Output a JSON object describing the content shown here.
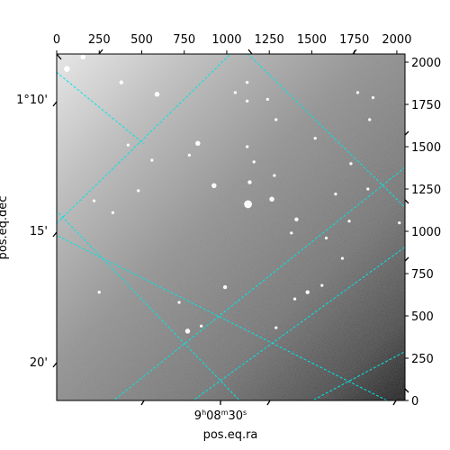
{
  "chart_data": {
    "type": "image",
    "title": "",
    "x_pixel_axis": {
      "range": [
        0,
        2048
      ],
      "ticks": [
        0,
        250,
        500,
        750,
        1000,
        1250,
        1500,
        1750,
        2000
      ],
      "tick_labels": [
        "0",
        "250",
        "500",
        "750",
        "1000",
        "1250",
        "1500",
        "1750",
        "2000"
      ]
    },
    "y_pixel_axis": {
      "range": [
        0,
        2048
      ],
      "ticks": [
        0,
        250,
        500,
        750,
        1000,
        1250,
        1500,
        1750,
        2000
      ],
      "tick_labels": [
        "0",
        "250",
        "500",
        "750",
        "1000",
        "1250",
        "1500",
        "1750",
        "2000"
      ]
    },
    "ra_axis": {
      "label": "pos.eq.ra",
      "tick_label": {
        "h": "9",
        "m": "08",
        "s": "30"
      }
    },
    "dec_axis": {
      "label": "pos.eq.dec",
      "tick_labels": [
        "1°10'",
        "15'",
        "20'"
      ]
    },
    "grid": true,
    "grid_color": "#00e5e5",
    "stars": [
      {
        "x": 60,
        "y": 1960,
        "r": 6
      },
      {
        "x": 155,
        "y": 2030,
        "r": 5
      },
      {
        "x": 380,
        "y": 1880,
        "r": 4
      },
      {
        "x": 590,
        "y": 1810,
        "r": 5
      },
      {
        "x": 830,
        "y": 1520,
        "r": 5
      },
      {
        "x": 925,
        "y": 1270,
        "r": 5
      },
      {
        "x": 1125,
        "y": 1160,
        "r": 8
      },
      {
        "x": 1135,
        "y": 1290,
        "r": 4
      },
      {
        "x": 1265,
        "y": 1190,
        "r": 5
      },
      {
        "x": 1410,
        "y": 1070,
        "r": 4
      },
      {
        "x": 1585,
        "y": 960,
        "r": 3
      },
      {
        "x": 1680,
        "y": 840,
        "r": 3
      },
      {
        "x": 1720,
        "y": 1060,
        "r": 3
      },
      {
        "x": 2015,
        "y": 1050,
        "r": 3
      },
      {
        "x": 1475,
        "y": 640,
        "r": 4
      },
      {
        "x": 1560,
        "y": 680,
        "r": 3
      },
      {
        "x": 1400,
        "y": 600,
        "r": 3
      },
      {
        "x": 990,
        "y": 670,
        "r": 4
      },
      {
        "x": 770,
        "y": 410,
        "r": 5
      },
      {
        "x": 1160,
        "y": 1410,
        "r": 3
      },
      {
        "x": 1280,
        "y": 1330,
        "r": 3
      },
      {
        "x": 1290,
        "y": 430,
        "r": 3
      },
      {
        "x": 1120,
        "y": 1500,
        "r": 3
      },
      {
        "x": 1520,
        "y": 1550,
        "r": 3
      },
      {
        "x": 1640,
        "y": 1220,
        "r": 3
      },
      {
        "x": 1730,
        "y": 1400,
        "r": 3
      },
      {
        "x": 1770,
        "y": 1820,
        "r": 3
      },
      {
        "x": 1840,
        "y": 1660,
        "r": 3
      },
      {
        "x": 1860,
        "y": 1790,
        "r": 3
      },
      {
        "x": 1290,
        "y": 1660,
        "r": 3
      },
      {
        "x": 1120,
        "y": 1880,
        "r": 3
      },
      {
        "x": 1050,
        "y": 1820,
        "r": 3
      },
      {
        "x": 780,
        "y": 1450,
        "r": 3
      },
      {
        "x": 560,
        "y": 1420,
        "r": 3
      },
      {
        "x": 420,
        "y": 1510,
        "r": 3
      },
      {
        "x": 480,
        "y": 1240,
        "r": 3
      },
      {
        "x": 220,
        "y": 1180,
        "r": 3
      },
      {
        "x": 330,
        "y": 1110,
        "r": 3
      },
      {
        "x": 720,
        "y": 580,
        "r": 3
      },
      {
        "x": 850,
        "y": 440,
        "r": 3
      },
      {
        "x": 250,
        "y": 640,
        "r": 3
      },
      {
        "x": 1120,
        "y": 1770,
        "r": 3
      },
      {
        "x": 1380,
        "y": 990,
        "r": 3
      },
      {
        "x": 1240,
        "y": 1780,
        "r": 3
      },
      {
        "x": 1830,
        "y": 1250,
        "r": 3
      }
    ]
  }
}
